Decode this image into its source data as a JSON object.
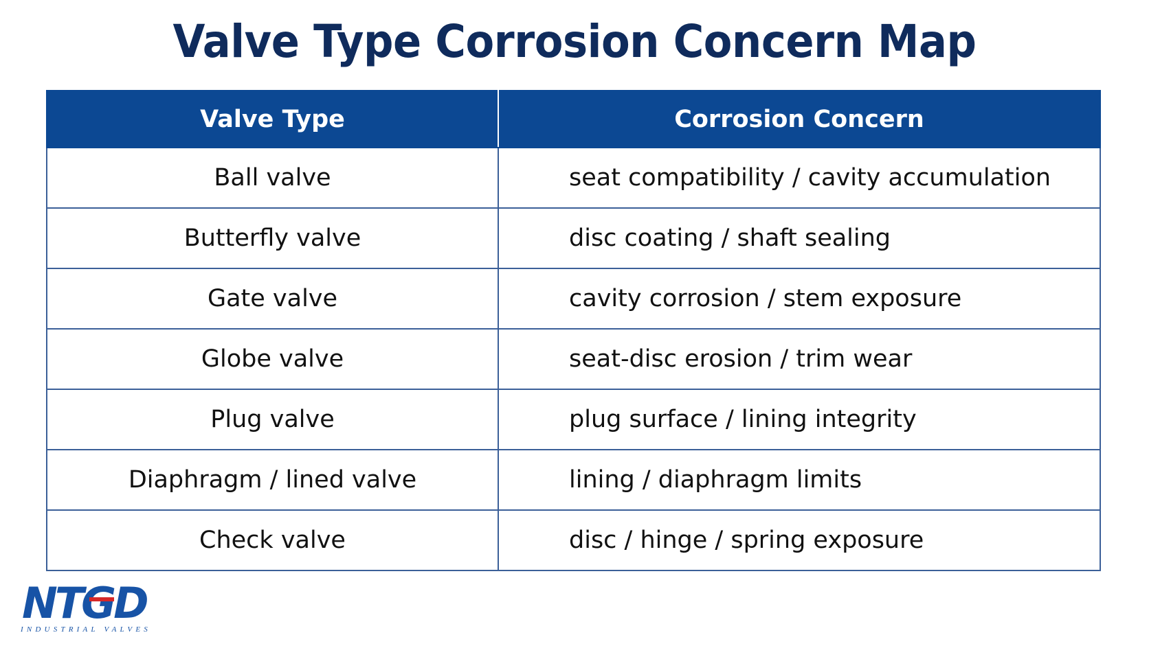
{
  "header": {
    "title": "Valve Type Corrosion Concern Map"
  },
  "table": {
    "columns": [
      "Valve Type",
      "Corrosion Concern"
    ],
    "rows": [
      [
        "Ball valve",
        "seat compatibility / cavity accumulation"
      ],
      [
        "Butterfly valve",
        "disc coating / shaft sealing"
      ],
      [
        "Gate valve",
        "cavity corrosion / stem exposure"
      ],
      [
        "Globe valve",
        "seat-disc erosion / trim wear"
      ],
      [
        "Plug valve",
        "plug surface / lining integrity"
      ],
      [
        "Diaphragm / lined valve",
        "lining / diaphragm limits"
      ],
      [
        "Check valve",
        "disc / hinge / spring exposure"
      ]
    ]
  },
  "logo": {
    "mark": "NTGD",
    "tagline": "INDUSTRIAL VALVES"
  }
}
